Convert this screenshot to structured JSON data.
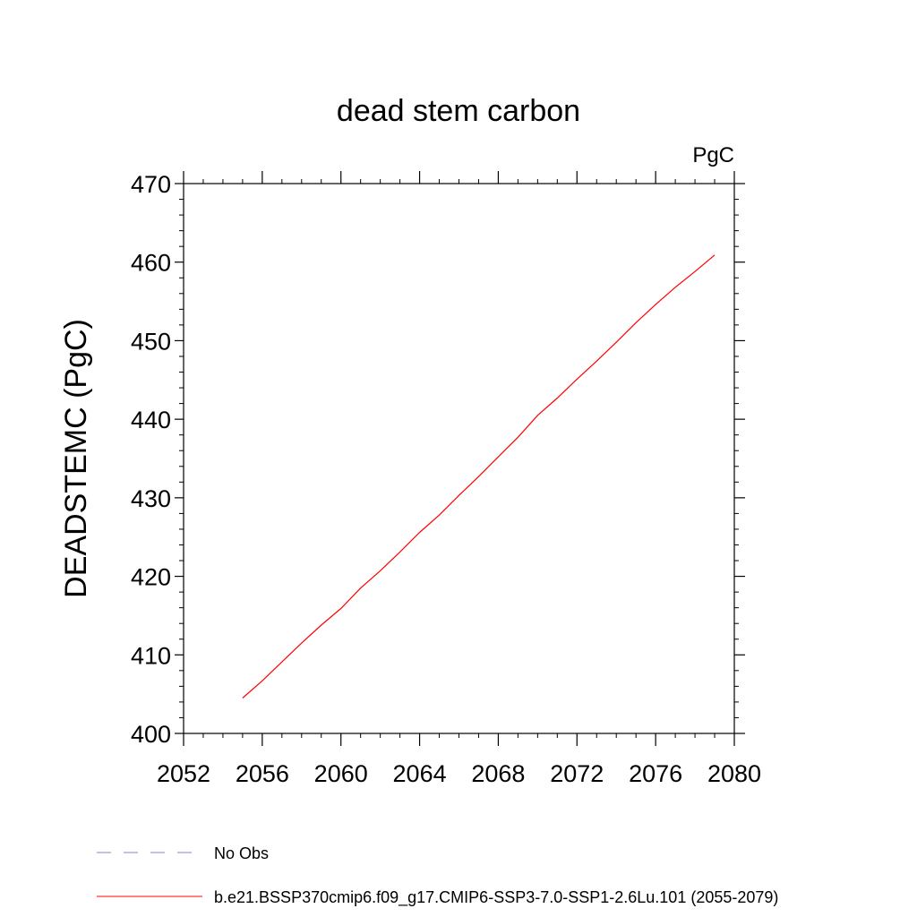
{
  "chart_data": {
    "type": "line",
    "title": "dead stem carbon",
    "units_label": "PgC",
    "xlabel": "",
    "ylabel": "DEADSTEMC  (PgC)",
    "xlim": [
      2052,
      2080
    ],
    "ylim": [
      400,
      470
    ],
    "x_ticks": [
      "2052",
      "2056",
      "2060",
      "2064",
      "2068",
      "2072",
      "2076",
      "2080"
    ],
    "y_ticks": [
      "400",
      "410",
      "420",
      "430",
      "440",
      "450",
      "460",
      "470"
    ],
    "grid": false,
    "series": [
      {
        "name": "b.e21.BSSP370cmip6.f09_g17.CMIP6-SSP3-7.0-SSP1-2.6Lu.101 (2055-2079)",
        "color": "#ff0000",
        "x": [
          2055,
          2056,
          2057,
          2058,
          2059,
          2060,
          2061,
          2062,
          2063,
          2064,
          2065,
          2066,
          2067,
          2068,
          2069,
          2070,
          2071,
          2072,
          2073,
          2074,
          2075,
          2076,
          2077,
          2078,
          2079
        ],
        "y": [
          404.5,
          406.7,
          409.1,
          411.5,
          413.8,
          415.9,
          418.5,
          420.7,
          423.1,
          425.6,
          427.8,
          430.3,
          432.7,
          435.2,
          437.7,
          440.5,
          442.7,
          445.1,
          447.4,
          449.8,
          452.3,
          454.6,
          456.8,
          458.8,
          460.9
        ]
      }
    ],
    "legend": {
      "placement": "bottom",
      "entries": [
        {
          "label": "No Obs",
          "color": "#8a82c0",
          "style": "dashed"
        },
        {
          "label": "b.e21.BSSP370cmip6.f09_g17.CMIP6-SSP3-7.0-SSP1-2.6Lu.101 (2055-2079)",
          "color": "#ff0000",
          "style": "solid"
        }
      ]
    }
  }
}
